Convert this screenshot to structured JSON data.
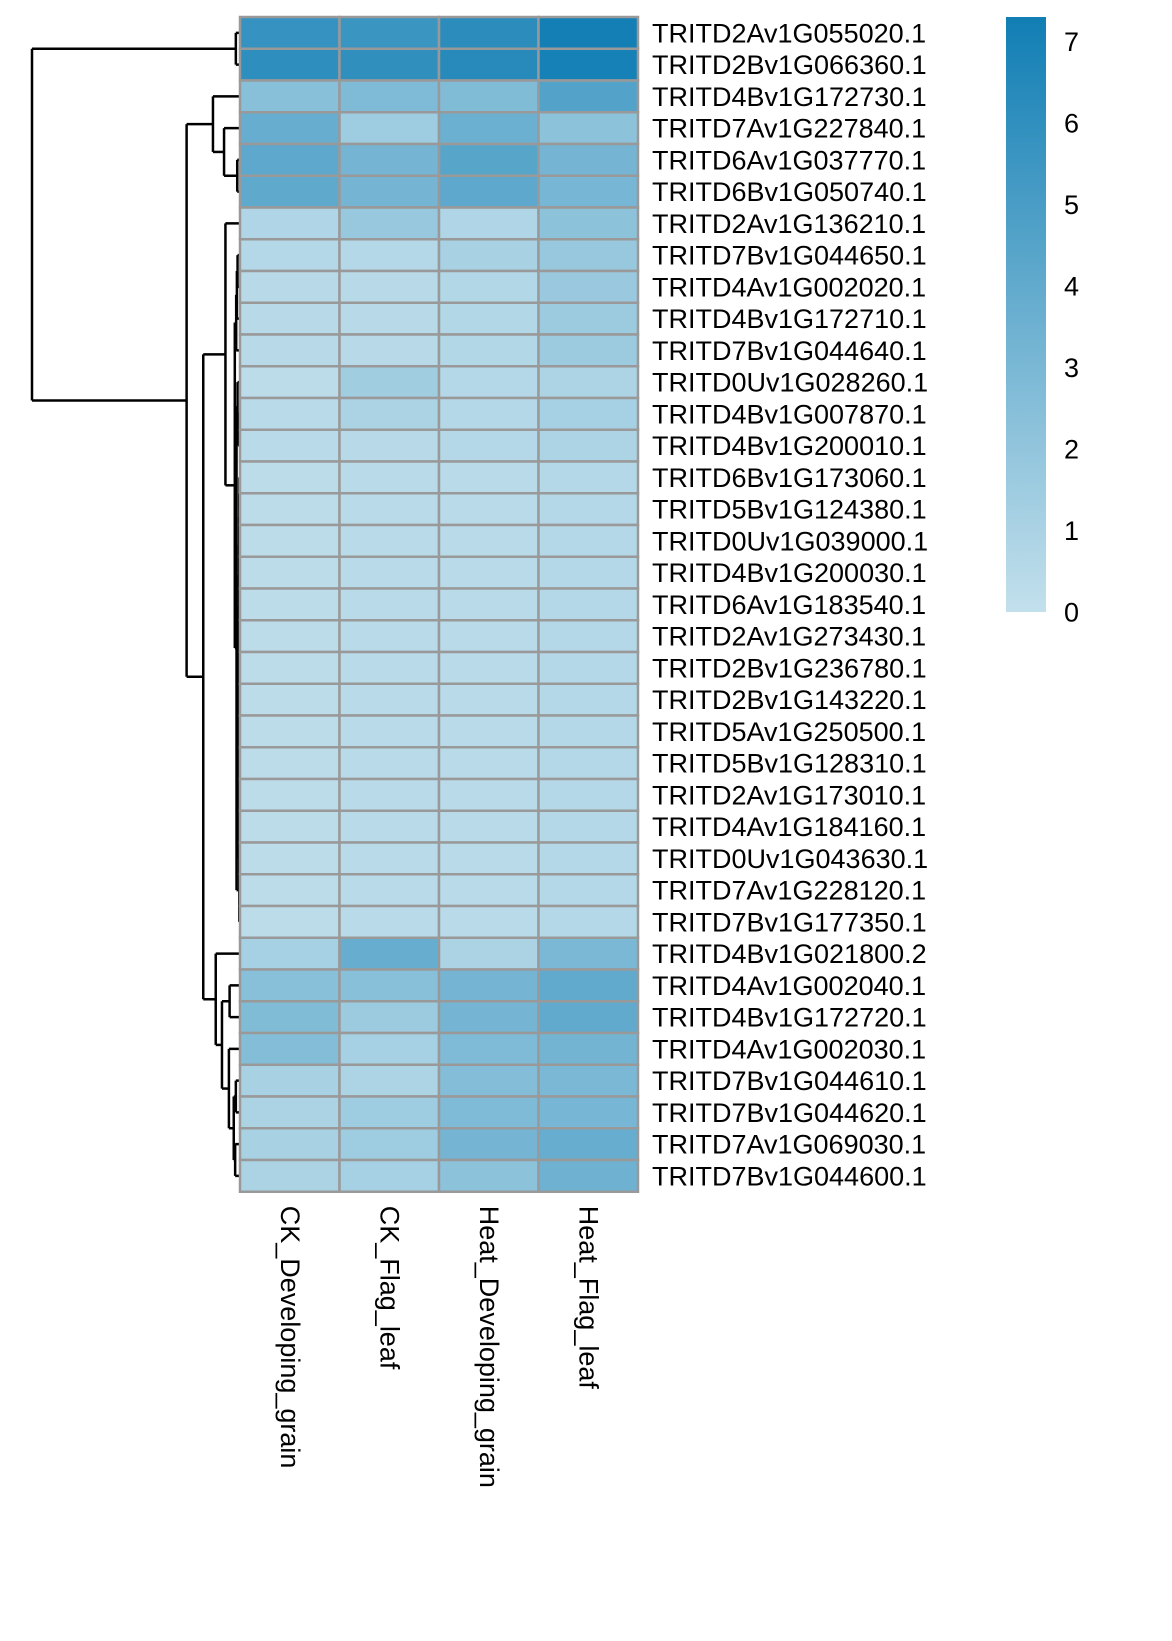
{
  "chart_data": {
    "type": "heatmap",
    "title": "",
    "xlabel": "",
    "ylabel": "",
    "columns": [
      "CK_Developing_grain",
      "CK_Flag_leaf",
      "Heat_Developing_grain",
      "Heat_Flag_leaf"
    ],
    "rows": [
      "TRITD2Av1G055020.1",
      "TRITD2Bv1G066360.1",
      "TRITD4Bv1G172730.1",
      "TRITD7Av1G227840.1",
      "TRITD6Av1G037770.1",
      "TRITD6Bv1G050740.1",
      "TRITD2Av1G136210.1",
      "TRITD7Bv1G044650.1",
      "TRITD4Av1G002020.1",
      "TRITD4Bv1G172710.1",
      "TRITD7Bv1G044640.1",
      "TRITD0Uv1G028260.1",
      "TRITD4Bv1G007870.1",
      "TRITD4Bv1G200010.1",
      "TRITD6Bv1G173060.1",
      "TRITD5Bv1G124380.1",
      "TRITD0Uv1G039000.1",
      "TRITD4Bv1G200030.1",
      "TRITD6Av1G183540.1",
      "TRITD2Av1G273430.1",
      "TRITD2Bv1G236780.1",
      "TRITD2Bv1G143220.1",
      "TRITD5Av1G250500.1",
      "TRITD5Bv1G128310.1",
      "TRITD2Av1G173010.1",
      "TRITD4Av1G184160.1",
      "TRITD0Uv1G043630.1",
      "TRITD7Av1G228120.1",
      "TRITD7Bv1G177350.1",
      "TRITD4Bv1G021800.2",
      "TRITD4Av1G002040.1",
      "TRITD4Bv1G172720.1",
      "TRITD4Av1G002030.1",
      "TRITD7Bv1G044610.1",
      "TRITD7Bv1G044620.1",
      "TRITD7Av1G069030.1",
      "TRITD7Bv1G044600.1"
    ],
    "values": [
      [
        5.8,
        5.6,
        6.2,
        7.2
      ],
      [
        6.1,
        6.0,
        6.4,
        7.1
      ],
      [
        2.4,
        2.8,
        2.7,
        4.6
      ],
      [
        3.8,
        1.5,
        3.6,
        2.2
      ],
      [
        4.2,
        3.2,
        4.4,
        3.2
      ],
      [
        4.1,
        3.2,
        4.2,
        3.1
      ],
      [
        0.8,
        1.8,
        0.8,
        2.2
      ],
      [
        0.6,
        0.6,
        1.1,
        1.8
      ],
      [
        0.5,
        0.5,
        0.7,
        1.7
      ],
      [
        0.5,
        0.5,
        0.7,
        1.6
      ],
      [
        0.5,
        0.5,
        0.7,
        1.6
      ],
      [
        0.3,
        1.4,
        0.6,
        0.9
      ],
      [
        0.4,
        1.0,
        0.6,
        1.2
      ],
      [
        0.4,
        0.5,
        0.6,
        0.9
      ],
      [
        0.3,
        0.4,
        0.4,
        0.6
      ],
      [
        0.3,
        0.4,
        0.4,
        0.6
      ],
      [
        0.3,
        0.4,
        0.4,
        0.6
      ],
      [
        0.3,
        0.4,
        0.4,
        0.6
      ],
      [
        0.3,
        0.4,
        0.4,
        0.6
      ],
      [
        0.3,
        0.4,
        0.4,
        0.6
      ],
      [
        0.3,
        0.4,
        0.4,
        0.6
      ],
      [
        0.3,
        0.4,
        0.4,
        0.6
      ],
      [
        0.3,
        0.4,
        0.4,
        0.6
      ],
      [
        0.3,
        0.4,
        0.4,
        0.6
      ],
      [
        0.3,
        0.4,
        0.4,
        0.6
      ],
      [
        0.3,
        0.4,
        0.4,
        0.6
      ],
      [
        0.3,
        0.4,
        0.4,
        0.6
      ],
      [
        0.3,
        0.4,
        0.4,
        0.6
      ],
      [
        0.3,
        0.4,
        0.4,
        0.6
      ],
      [
        1.2,
        3.8,
        1.0,
        3.0
      ],
      [
        2.4,
        2.4,
        3.2,
        4.0
      ],
      [
        2.7,
        1.6,
        3.2,
        4.0
      ],
      [
        2.6,
        1.2,
        2.8,
        3.3
      ],
      [
        1.1,
        0.9,
        2.6,
        3.0
      ],
      [
        1.0,
        1.5,
        2.8,
        3.1
      ],
      [
        1.1,
        1.5,
        3.2,
        3.8
      ],
      [
        1.0,
        1.2,
        2.2,
        3.5
      ]
    ],
    "color_scale": {
      "min": 0,
      "max": 7.3,
      "low_color": "#c3e0ec",
      "high_color": "#117eb4"
    },
    "legend": {
      "position": "right",
      "ticks": [
        "0",
        "1",
        "2",
        "3",
        "4",
        "5",
        "6",
        "7"
      ]
    },
    "cell_border_color": "#999999",
    "row_dendrogram": true,
    "dendrogram_color": "#000000"
  }
}
